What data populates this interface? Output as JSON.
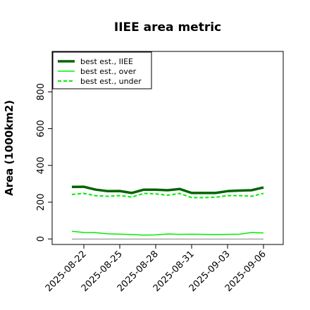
{
  "chart_data": {
    "type": "line",
    "title": "IIEE area metric",
    "xlabel": "",
    "ylabel": "Area (1000km2)",
    "ylim": [
      -30,
      1020
    ],
    "yticks": [
      0,
      200,
      400,
      600,
      800
    ],
    "ytick_labels": [
      "0",
      "200",
      "400",
      "600",
      "800"
    ],
    "x": [
      "2025-08-21",
      "2025-08-22",
      "2025-08-23",
      "2025-08-24",
      "2025-08-25",
      "2025-08-26",
      "2025-08-27",
      "2025-08-28",
      "2025-08-29",
      "2025-08-30",
      "2025-08-31",
      "2025-09-01",
      "2025-09-02",
      "2025-09-03",
      "2025-09-04",
      "2025-09-05",
      "2025-09-06"
    ],
    "xticks": [
      "2025-08-22",
      "2025-08-25",
      "2025-08-28",
      "2025-08-31",
      "2025-09-03",
      "2025-09-06"
    ],
    "grid": false,
    "legend_position": "top-left",
    "series": [
      {
        "name": "best est., IIEE",
        "color": "#006400",
        "style": "solid",
        "width": "thick",
        "values": [
          283,
          284,
          268,
          260,
          261,
          250,
          268,
          268,
          265,
          272,
          250,
          250,
          250,
          260,
          263,
          265,
          280
        ]
      },
      {
        "name": "best est., over",
        "color": "#00ee00",
        "style": "solid",
        "width": "thin",
        "values": [
          42,
          35,
          34,
          28,
          26,
          24,
          21,
          22,
          27,
          25,
          26,
          25,
          24,
          25,
          26,
          35,
          33
        ]
      },
      {
        "name": "best est., under",
        "color": "#00ee00",
        "style": "dashed",
        "width": "medium",
        "values": [
          242,
          248,
          235,
          232,
          236,
          228,
          248,
          245,
          238,
          248,
          225,
          225,
          227,
          236,
          236,
          232,
          248
        ]
      },
      {
        "name": "",
        "color": "#808080",
        "style": "solid",
        "width": "thin",
        "values": [
          0,
          0,
          0,
          0,
          0,
          0,
          0,
          0,
          0,
          0,
          0,
          0,
          0,
          0,
          0,
          0,
          0
        ]
      }
    ]
  }
}
